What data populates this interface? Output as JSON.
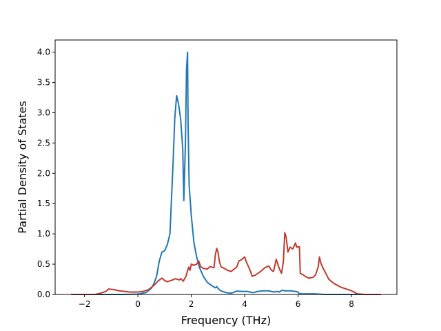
{
  "chart_data": {
    "type": "line",
    "title": "",
    "xlabel": "Frequency (THz)",
    "ylabel": "Partial Density of States",
    "xlim": [
      -3.1,
      9.7
    ],
    "ylim": [
      0,
      4.2
    ],
    "xticks": [
      -2,
      0,
      2,
      4,
      6,
      8
    ],
    "xtick_labels": [
      "−2",
      "0",
      "2",
      "4",
      "6",
      "8"
    ],
    "yticks": [
      0,
      0.5,
      1,
      1.5,
      2,
      2.5,
      3,
      3.5,
      4
    ],
    "ytick_labels": [
      "0.0",
      "0.5",
      "1.0",
      "1.5",
      "2.0",
      "2.5",
      "3.0",
      "3.5",
      "4.0"
    ],
    "grid": false,
    "legend": "none",
    "series": [
      {
        "color": "#1f77b4",
        "points": [
          [
            -2.5,
            0
          ],
          [
            -1.0,
            0
          ],
          [
            -0.5,
            0
          ],
          [
            0,
            0.005
          ],
          [
            0.3,
            0.03
          ],
          [
            0.5,
            0.1
          ],
          [
            0.6,
            0.18
          ],
          [
            0.7,
            0.3
          ],
          [
            0.8,
            0.55
          ],
          [
            0.9,
            0.7
          ],
          [
            1.0,
            0.72
          ],
          [
            1.1,
            0.82
          ],
          [
            1.2,
            1.0
          ],
          [
            1.25,
            1.5
          ],
          [
            1.32,
            2.2
          ],
          [
            1.38,
            2.9
          ],
          [
            1.45,
            3.28
          ],
          [
            1.52,
            3.15
          ],
          [
            1.6,
            2.9
          ],
          [
            1.68,
            2.4
          ],
          [
            1.72,
            1.55
          ],
          [
            1.78,
            2.5
          ],
          [
            1.82,
            3.7
          ],
          [
            1.86,
            4.0
          ],
          [
            1.88,
            2.8
          ],
          [
            1.92,
            1.8
          ],
          [
            2.0,
            1.3
          ],
          [
            2.1,
            0.85
          ],
          [
            2.2,
            0.62
          ],
          [
            2.3,
            0.45
          ],
          [
            2.45,
            0.3
          ],
          [
            2.6,
            0.2
          ],
          [
            2.75,
            0.15
          ],
          [
            2.9,
            0.11
          ],
          [
            2.95,
            0.13
          ],
          [
            3.0,
            0.1
          ],
          [
            3.1,
            0.06
          ],
          [
            3.3,
            0.03
          ],
          [
            3.5,
            0.02
          ],
          [
            3.7,
            0.055
          ],
          [
            3.9,
            0.05
          ],
          [
            4.1,
            0.05
          ],
          [
            4.2,
            0.04
          ],
          [
            4.3,
            0.03
          ],
          [
            4.5,
            0.05
          ],
          [
            4.7,
            0.06
          ],
          [
            4.9,
            0.06
          ],
          [
            5.0,
            0.05
          ],
          [
            5.1,
            0.04
          ],
          [
            5.2,
            0.05
          ],
          [
            5.3,
            0.04
          ],
          [
            5.4,
            0.07
          ],
          [
            5.5,
            0.06
          ],
          [
            5.7,
            0.06
          ],
          [
            5.9,
            0.05
          ],
          [
            6.0,
            0.04
          ],
          [
            6.05,
            0.01
          ],
          [
            6.4,
            0.01
          ],
          [
            6.6,
            0.01
          ],
          [
            6.8,
            0.005
          ],
          [
            7.0,
            0.0
          ],
          [
            7.5,
            0
          ],
          [
            8.5,
            0
          ],
          [
            9.1,
            0
          ]
        ]
      },
      {
        "color": "#c0392b",
        "points": [
          [
            -2.5,
            0
          ],
          [
            -1.6,
            0
          ],
          [
            -1.4,
            0.02
          ],
          [
            -1.2,
            0.05
          ],
          [
            -1.1,
            0.09
          ],
          [
            -0.9,
            0.08
          ],
          [
            -0.7,
            0.06
          ],
          [
            -0.5,
            0.05
          ],
          [
            -0.3,
            0.04
          ],
          [
            0,
            0.04
          ],
          [
            0.2,
            0.05
          ],
          [
            0.4,
            0.08
          ],
          [
            0.6,
            0.15
          ],
          [
            0.75,
            0.22
          ],
          [
            0.9,
            0.27
          ],
          [
            1.0,
            0.23
          ],
          [
            1.1,
            0.21
          ],
          [
            1.3,
            0.24
          ],
          [
            1.4,
            0.26
          ],
          [
            1.55,
            0.24
          ],
          [
            1.6,
            0.26
          ],
          [
            1.7,
            0.22
          ],
          [
            1.8,
            0.3
          ],
          [
            1.9,
            0.45
          ],
          [
            1.95,
            0.4
          ],
          [
            2.0,
            0.5
          ],
          [
            2.1,
            0.48
          ],
          [
            2.2,
            0.5
          ],
          [
            2.28,
            0.55
          ],
          [
            2.35,
            0.46
          ],
          [
            2.45,
            0.43
          ],
          [
            2.6,
            0.42
          ],
          [
            2.7,
            0.46
          ],
          [
            2.85,
            0.44
          ],
          [
            2.9,
            0.65
          ],
          [
            2.95,
            0.76
          ],
          [
            3.0,
            0.7
          ],
          [
            3.05,
            0.55
          ],
          [
            3.12,
            0.45
          ],
          [
            3.2,
            0.44
          ],
          [
            3.35,
            0.4
          ],
          [
            3.5,
            0.38
          ],
          [
            3.6,
            0.42
          ],
          [
            3.7,
            0.45
          ],
          [
            3.78,
            0.55
          ],
          [
            3.9,
            0.58
          ],
          [
            4.0,
            0.62
          ],
          [
            4.05,
            0.55
          ],
          [
            4.2,
            0.4
          ],
          [
            4.28,
            0.3
          ],
          [
            4.4,
            0.32
          ],
          [
            4.6,
            0.38
          ],
          [
            4.75,
            0.44
          ],
          [
            4.9,
            0.47
          ],
          [
            5.0,
            0.4
          ],
          [
            5.08,
            0.38
          ],
          [
            5.18,
            0.58
          ],
          [
            5.3,
            0.42
          ],
          [
            5.38,
            0.35
          ],
          [
            5.45,
            0.55
          ],
          [
            5.5,
            1.02
          ],
          [
            5.55,
            0.95
          ],
          [
            5.62,
            0.7
          ],
          [
            5.7,
            0.78
          ],
          [
            5.8,
            0.75
          ],
          [
            5.9,
            0.85
          ],
          [
            5.95,
            0.78
          ],
          [
            6.05,
            0.79
          ],
          [
            6.08,
            0.35
          ],
          [
            6.2,
            0.32
          ],
          [
            6.3,
            0.29
          ],
          [
            6.4,
            0.27
          ],
          [
            6.55,
            0.28
          ],
          [
            6.65,
            0.32
          ],
          [
            6.75,
            0.45
          ],
          [
            6.8,
            0.62
          ],
          [
            6.85,
            0.52
          ],
          [
            6.95,
            0.42
          ],
          [
            7.05,
            0.34
          ],
          [
            7.15,
            0.25
          ],
          [
            7.35,
            0.18
          ],
          [
            7.6,
            0.12
          ],
          [
            7.8,
            0.09
          ],
          [
            8.0,
            0.06
          ],
          [
            8.1,
            0.04
          ],
          [
            8.2,
            0.01
          ],
          [
            8.5,
            0
          ],
          [
            9.1,
            0
          ]
        ]
      }
    ]
  }
}
